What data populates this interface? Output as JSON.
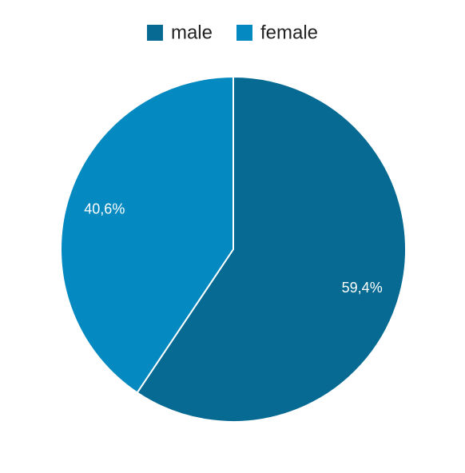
{
  "chart_data": {
    "type": "pie",
    "categories": [
      "male",
      "female"
    ],
    "values": [
      59.4,
      40.6
    ],
    "value_labels": [
      "59,4%",
      "40,6%"
    ],
    "colors": [
      "#066a93",
      "#0489c0"
    ],
    "legend": "top"
  }
}
